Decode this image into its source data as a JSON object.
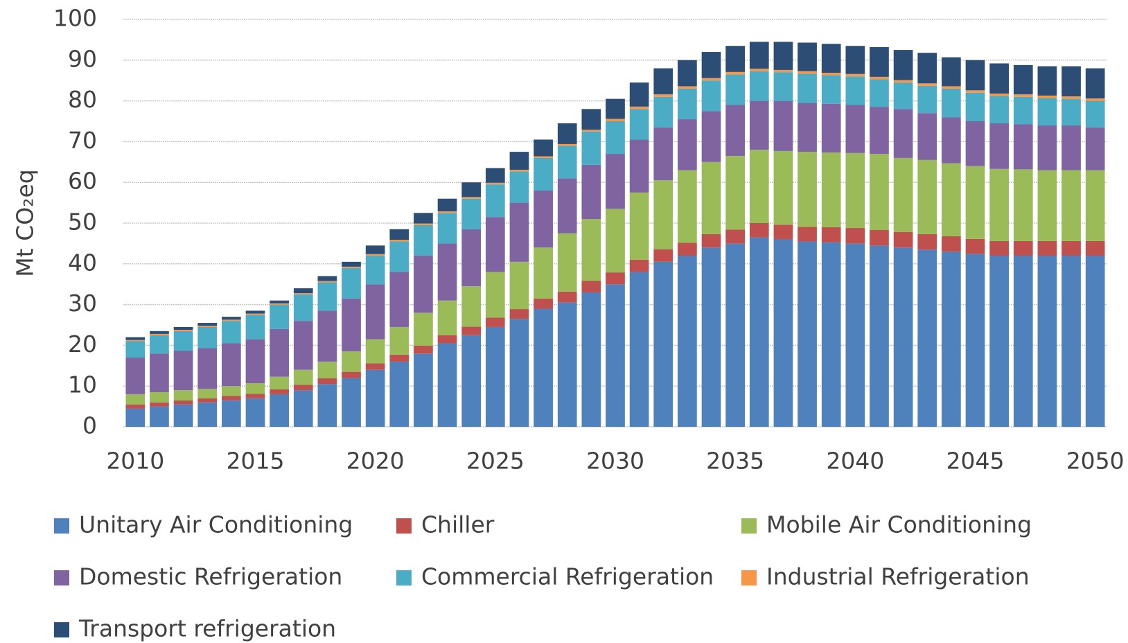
{
  "chart_data": {
    "type": "stacked_bar",
    "ylabel": "Mt CO₂eq",
    "x": [
      2010,
      2011,
      2012,
      2013,
      2014,
      2015,
      2016,
      2017,
      2018,
      2019,
      2020,
      2021,
      2022,
      2023,
      2024,
      2025,
      2026,
      2027,
      2028,
      2029,
      2030,
      2031,
      2032,
      2033,
      2034,
      2035,
      2036,
      2037,
      2038,
      2039,
      2040,
      2041,
      2042,
      2043,
      2044,
      2045,
      2046,
      2047,
      2048,
      2049,
      2050
    ],
    "xlim": [
      2009.5,
      2050.5
    ],
    "xticks": [
      2010,
      2015,
      2020,
      2025,
      2030,
      2035,
      2040,
      2045,
      2050
    ],
    "ylim": [
      0,
      100
    ],
    "yticks": [
      0,
      10,
      20,
      30,
      40,
      50,
      60,
      70,
      80,
      90,
      100
    ],
    "grid": true,
    "legend": "bottom",
    "series": [
      {
        "name": "Unitary Air Conditioning",
        "color": "#4f81bd",
        "values": [
          4.5,
          5,
          5.5,
          6,
          6.5,
          7,
          8,
          9,
          10.5,
          12,
          14,
          16,
          18,
          20.5,
          22.5,
          24.5,
          26.5,
          29,
          30.5,
          33,
          35,
          38,
          40.5,
          42,
          44,
          45,
          46.5,
          46,
          45.5,
          45.3,
          45,
          44.5,
          44,
          43.5,
          43,
          42.5,
          42,
          42,
          42,
          42,
          42
        ]
      },
      {
        "name": "Chiller",
        "color": "#c0504d",
        "values": [
          1,
          1,
          1,
          1,
          1.1,
          1.1,
          1.2,
          1.3,
          1.4,
          1.5,
          1.6,
          1.7,
          1.9,
          2,
          2.1,
          2.3,
          2.4,
          2.5,
          2.7,
          2.8,
          2.9,
          3,
          3.1,
          3.2,
          3.3,
          3.4,
          3.5,
          3.6,
          3.6,
          3.7,
          3.8,
          3.8,
          3.8,
          3.8,
          3.8,
          3.6,
          3.6,
          3.6,
          3.6,
          3.6,
          3.6
        ]
      },
      {
        "name": "Mobile Air Conditioning",
        "color": "#9bbb59",
        "values": [
          2.5,
          2.5,
          2.5,
          2.3,
          2.4,
          2.6,
          3.1,
          3.7,
          4.1,
          5,
          5.9,
          6.8,
          8.1,
          8.5,
          9.9,
          11.2,
          11.6,
          12.5,
          14.3,
          15.2,
          15.6,
          16.5,
          16.9,
          17.8,
          17.7,
          18.1,
          18,
          18.1,
          18.4,
          18.3,
          18.4,
          18.7,
          18.2,
          18.2,
          17.9,
          17.9,
          17.7,
          17.6,
          17.4,
          17.4,
          17.4
        ]
      },
      {
        "name": "Domestic Refrigeration",
        "color": "#8064a2",
        "values": [
          9,
          9.5,
          9.7,
          10,
          10.5,
          10.8,
          11.7,
          12,
          12.5,
          13,
          13.5,
          13.5,
          14,
          14,
          14,
          13.5,
          14.5,
          14,
          13.5,
          13.3,
          13.5,
          13,
          13,
          12.5,
          12.5,
          12.5,
          12,
          12.3,
          12,
          12,
          11.8,
          11.5,
          12,
          11.5,
          11.3,
          11,
          11.2,
          11.1,
          11,
          11,
          10.5
        ]
      },
      {
        "name": "Commercial Refrigeration",
        "color": "#4bacc6",
        "values": [
          4,
          4.5,
          4.8,
          5.2,
          5.5,
          6,
          6,
          6.5,
          7,
          7.5,
          7,
          7.5,
          7.5,
          7.5,
          7.5,
          8,
          7.7,
          8,
          8,
          8.2,
          8,
          7.5,
          7.5,
          7.5,
          7.5,
          7.5,
          7.3,
          7,
          7.2,
          7,
          7,
          6.8,
          6.5,
          6.7,
          7,
          7,
          6.7,
          6.7,
          6.7,
          6.5,
          6.5
        ]
      },
      {
        "name": "Industrial Refrigeration",
        "color": "#f79646",
        "values": [
          0.3,
          0.3,
          0.3,
          0.3,
          0.3,
          0.3,
          0.3,
          0.3,
          0.3,
          0.3,
          0.4,
          0.4,
          0.4,
          0.4,
          0.4,
          0.4,
          0.4,
          0.4,
          0.4,
          0.4,
          0.6,
          0.6,
          0.6,
          0.6,
          0.6,
          0.6,
          0.6,
          0.6,
          0.6,
          0.6,
          0.6,
          0.6,
          0.6,
          0.6,
          0.6,
          0.6,
          0.6,
          0.6,
          0.6,
          0.6,
          0.6
        ]
      },
      {
        "name": "Transport refrigeration",
        "color": "#2c4d75",
        "values": [
          0.7,
          0.7,
          0.7,
          0.7,
          0.7,
          0.7,
          0.7,
          1.2,
          1.2,
          1.2,
          2.1,
          2.6,
          2.6,
          3.1,
          3.6,
          3.6,
          4.4,
          4.1,
          5.1,
          5.1,
          4.9,
          5.9,
          6.4,
          6.4,
          6.4,
          6.4,
          6.6,
          6.9,
          7,
          7.1,
          6.9,
          7.3,
          7.4,
          7.5,
          7.1,
          7.4,
          7.4,
          7.2,
          7.2,
          7.4,
          7.4
        ]
      }
    ]
  }
}
